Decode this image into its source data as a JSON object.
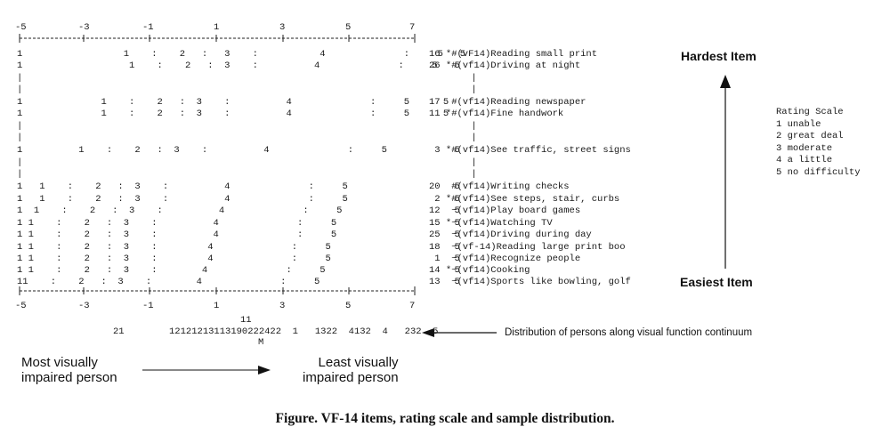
{
  "figure": {
    "caption": "Figure.  VF-14 items, rating scale and sample distribution.",
    "axis": {
      "top_ticks": [
        "-5",
        "-3",
        "-1",
        "1",
        "3",
        "5",
        "7"
      ],
      "bottom_ticks": [
        "-5",
        "-3",
        "-1",
        "1",
        "3",
        "5",
        "7"
      ],
      "top_rule": "|-----------------+-----------------+-----------------+-----------------+-----------------+-----------------+|",
      "bottom_rule": "|-----------------+-----------------+-----------------+-----------------+-----------------+-----------------+|"
    },
    "rows": [
      {
        "rating": "1                  1    :    2   :   3    :           4              :     5   5",
        "item": "16 *#(vF14)Reading small print"
      },
      {
        "rating": "1                   1    :    2   :  3    :          4              :     5   5",
        "item": "26 *#(vf14)Driving at night"
      },
      {
        "rating": "|                                                                                |",
        "item": ""
      },
      {
        "rating": "|                                                                                |",
        "item": ""
      },
      {
        "rating": "1              1    :    2   :  3    :          4              :     5      5",
        "item": "17  #(vf14)Reading newspaper"
      },
      {
        "rating": "1              1    :    2   :  3    :          4              :     5      5",
        "item": "11 *#(vf14)Fine handwork"
      },
      {
        "rating": "|                                                                                |",
        "item": ""
      },
      {
        "rating": "|                                                                                |",
        "item": ""
      },
      {
        "rating": "1          1    :    2   :  3    :          4              :     5            5",
        "item": " 3 *#(vf14)See traffic, street signs"
      },
      {
        "rating": "|                                                                                |",
        "item": ""
      },
      {
        "rating": "|                                                                                |",
        "item": ""
      },
      {
        "rating": "1   1    :    2   :  3    :          4              :     5                   5",
        "item": "20  #(vf14)Writing checks"
      },
      {
        "rating": "1   1    :    2   :  3    :          4              :     5                   5",
        "item": " 2 *#(vf14)See steps, stair, curbs"
      },
      {
        "rating": "1  1    :    2   :  3    :          4              :     5                    5",
        "item": "12  ~(vf14)Play board games"
      },
      {
        "rating": "1 1    :    2   :  3    :          4              :     5                     5",
        "item": "15 *~(vf14)Watching TV"
      },
      {
        "rating": "1 1    :    2   :  3    :          4              :     5                     5",
        "item": "25  ~(vf14)Driving during day"
      },
      {
        "rating": "1 1    :    2   :  3    :         4              :     5                      5",
        "item": "18  ~(vf-14)Reading large print boo"
      },
      {
        "rating": "1 1    :    2   :  3    :         4              :     5                      5",
        "item": " 1  ~(vf14)Recognize people"
      },
      {
        "rating": "1 1    :    2   :  3    :        4              :     5                       5",
        "item": "14 *~(vf14)Cooking"
      },
      {
        "rating": "11    :    2   :  3    :        4              :     5                        5",
        "item": "13  ~(vf14)Sports like bowling, golf"
      }
    ],
    "distribution": {
      "line1": "                                            11",
      "line2": "             21        12121213113190222421  1   1322  4132  4   232  5",
      "line3": "                                              M",
      "label": "Distribution of persons along visual function continuum"
    },
    "labels": {
      "hardest": "Hardest Item",
      "easiest": "Easiest Item",
      "most_impaired": "Most visually\nimpaired person",
      "least_impaired": "Least visually\nimpaired person"
    },
    "rating_scale": {
      "title": "Rating Scale",
      "items": [
        "1 unable",
        "2 great deal",
        "3 moderate",
        "4 a little",
        "5 no difficulty"
      ]
    }
  }
}
